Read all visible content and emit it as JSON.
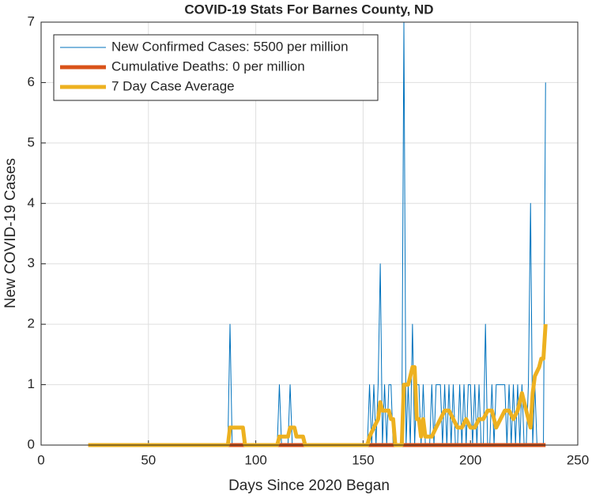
{
  "chart_data": {
    "type": "line",
    "title": "COVID-19 Stats For Barnes County, ND",
    "xlabel": "Days Since 2020 Began",
    "ylabel": "New COVID-19 Cases",
    "xlim": [
      0,
      250
    ],
    "xticks": [
      0,
      50,
      100,
      150,
      200,
      250
    ],
    "ylim": [
      0,
      7
    ],
    "yticks": [
      0,
      1,
      2,
      3,
      4,
      5,
      6,
      7
    ],
    "grid": true,
    "legend": "northwest",
    "series": [
      {
        "name": "New Confirmed Cases: 5500 per million",
        "color": "#0072bd",
        "width": 1,
        "x": [
          22,
          87,
          88,
          89,
          110,
          111,
          112,
          115,
          116,
          117,
          150,
          151,
          152,
          153,
          154,
          155,
          156,
          157,
          158,
          159,
          160,
          161,
          162,
          163,
          164,
          165,
          166,
          167,
          168,
          169,
          170,
          171,
          172,
          173,
          174,
          175,
          176,
          177,
          178,
          179,
          180,
          181,
          182,
          183,
          184,
          185,
          186,
          187,
          188,
          189,
          190,
          191,
          192,
          193,
          194,
          195,
          196,
          197,
          198,
          199,
          200,
          201,
          202,
          203,
          204,
          205,
          206,
          207,
          208,
          209,
          210,
          211,
          212,
          213,
          214,
          215,
          216,
          217,
          218,
          219,
          220,
          221,
          222,
          223,
          224,
          225,
          226,
          227,
          228,
          229,
          230,
          231,
          232,
          233,
          234,
          235
        ],
        "values": [
          0,
          0,
          2,
          0,
          0,
          1,
          0,
          0,
          1,
          0,
          0,
          0,
          0,
          1,
          0,
          1,
          0,
          1,
          3,
          0,
          1,
          0,
          1,
          1,
          0,
          0,
          0,
          0,
          0,
          7,
          0,
          1,
          0,
          2,
          0,
          1,
          1,
          0,
          1,
          0,
          0,
          0,
          1,
          0,
          1,
          1,
          1,
          0,
          1,
          0,
          1,
          0,
          1,
          0,
          0,
          1,
          0,
          1,
          0,
          1,
          1,
          0,
          1,
          0,
          1,
          0,
          0,
          2,
          0,
          0,
          1,
          0,
          1,
          1,
          1,
          1,
          1,
          0,
          1,
          0,
          1,
          0,
          1,
          0,
          1,
          0,
          0,
          1,
          4,
          0,
          1,
          0,
          0,
          0,
          0,
          6
        ]
      },
      {
        "name": "Cumulative Deaths: 0 per million",
        "color": "#d95319",
        "width": 5,
        "x": [
          22,
          235
        ],
        "values": [
          0,
          0
        ]
      },
      {
        "name": "7 Day Case Average",
        "color": "#edb120",
        "width": 5,
        "x": [
          22,
          87,
          88,
          94,
          95,
          110,
          111,
          115,
          116,
          118,
          119,
          122,
          123,
          152,
          153,
          155,
          157,
          158,
          159,
          162,
          163,
          164,
          165,
          168,
          169,
          171,
          172,
          173,
          174,
          175,
          176,
          177,
          178,
          179,
          182,
          184,
          186,
          188,
          190,
          192,
          194,
          196,
          198,
          200,
          202,
          204,
          206,
          208,
          210,
          212,
          214,
          216,
          218,
          220,
          222,
          224,
          226,
          228,
          229,
          230,
          232,
          233,
          234,
          235
        ],
        "values": [
          0,
          0,
          0.29,
          0.29,
          0,
          0,
          0.14,
          0.14,
          0.29,
          0.29,
          0.14,
          0.14,
          0,
          0,
          0.14,
          0.29,
          0.43,
          0.71,
          0.57,
          0.57,
          0.43,
          0.43,
          0,
          0,
          1,
          1,
          1.14,
          1.29,
          1.29,
          0.43,
          0.43,
          0.14,
          0.43,
          0.14,
          0.14,
          0.29,
          0.43,
          0.57,
          0.57,
          0.43,
          0.29,
          0.29,
          0.43,
          0.29,
          0.29,
          0.43,
          0.43,
          0.57,
          0.57,
          0.29,
          0.43,
          0.57,
          0.57,
          0.43,
          0.57,
          0.86,
          0.57,
          0.29,
          0.86,
          1.14,
          1.29,
          1.43,
          1.43,
          2
        ]
      }
    ]
  }
}
